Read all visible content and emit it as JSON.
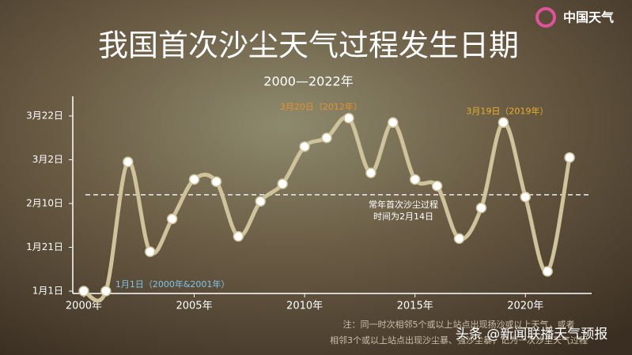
{
  "chart_data": {
    "type": "line",
    "title": "我国首次沙尘天气过程发生日期",
    "subtitle": "2000—2022年",
    "logo": "中国天气",
    "x": [
      2000,
      2001,
      2002,
      2003,
      2004,
      2005,
      2006,
      2007,
      2008,
      2009,
      2010,
      2011,
      2012,
      2013,
      2014,
      2015,
      2016,
      2017,
      2018,
      2019,
      2020,
      2021,
      2022
    ],
    "values": [
      1,
      1,
      60,
      19,
      34,
      52,
      51,
      26,
      42,
      50,
      67,
      71,
      80,
      55,
      78,
      52,
      49,
      25,
      39,
      78,
      44,
      10,
      62
    ],
    "color": "#cfc39b",
    "xlim": [
      1999.5,
      2023
    ],
    "xticks": [
      {
        "value": 2000,
        "label": "2000年"
      },
      {
        "value": 2005,
        "label": "2005年"
      },
      {
        "value": 2010,
        "label": "2010年"
      },
      {
        "value": 2015,
        "label": "2015年"
      },
      {
        "value": 2020,
        "label": "2020年"
      }
    ],
    "ylim": [
      1,
      90
    ],
    "yticks": [
      {
        "value": 1,
        "label": "1月1日"
      },
      {
        "value": 21,
        "label": "1月21日"
      },
      {
        "value": 41,
        "label": "2月10日"
      },
      {
        "value": 61,
        "label": "3月2日"
      },
      {
        "value": 81,
        "label": "3月22日"
      }
    ],
    "reference": {
      "value": 45,
      "label_lines": [
        "常年首次沙尘过程",
        "时间为2月14日"
      ]
    },
    "annotations": [
      {
        "text": "3月20日（2012年）",
        "x": 2012,
        "y": 80,
        "color": "#e8922a"
      },
      {
        "text": "3月19日（2019年）",
        "x": 2019,
        "y": 78,
        "color": "#e8b02a"
      },
      {
        "text": "1月1日（2000年&2001年）",
        "x": 2001,
        "y": 1,
        "color": "#7fc4e8"
      }
    ],
    "note": [
      "注：同一时次相邻5个或以上站点出现扬沙或以上天气，或者",
      "相邻3个或以上站点出现沙尘暴、强沙尘暴，记为一次沙尘天气过程"
    ],
    "watermark": "头条 @新闻联播天气预报"
  }
}
